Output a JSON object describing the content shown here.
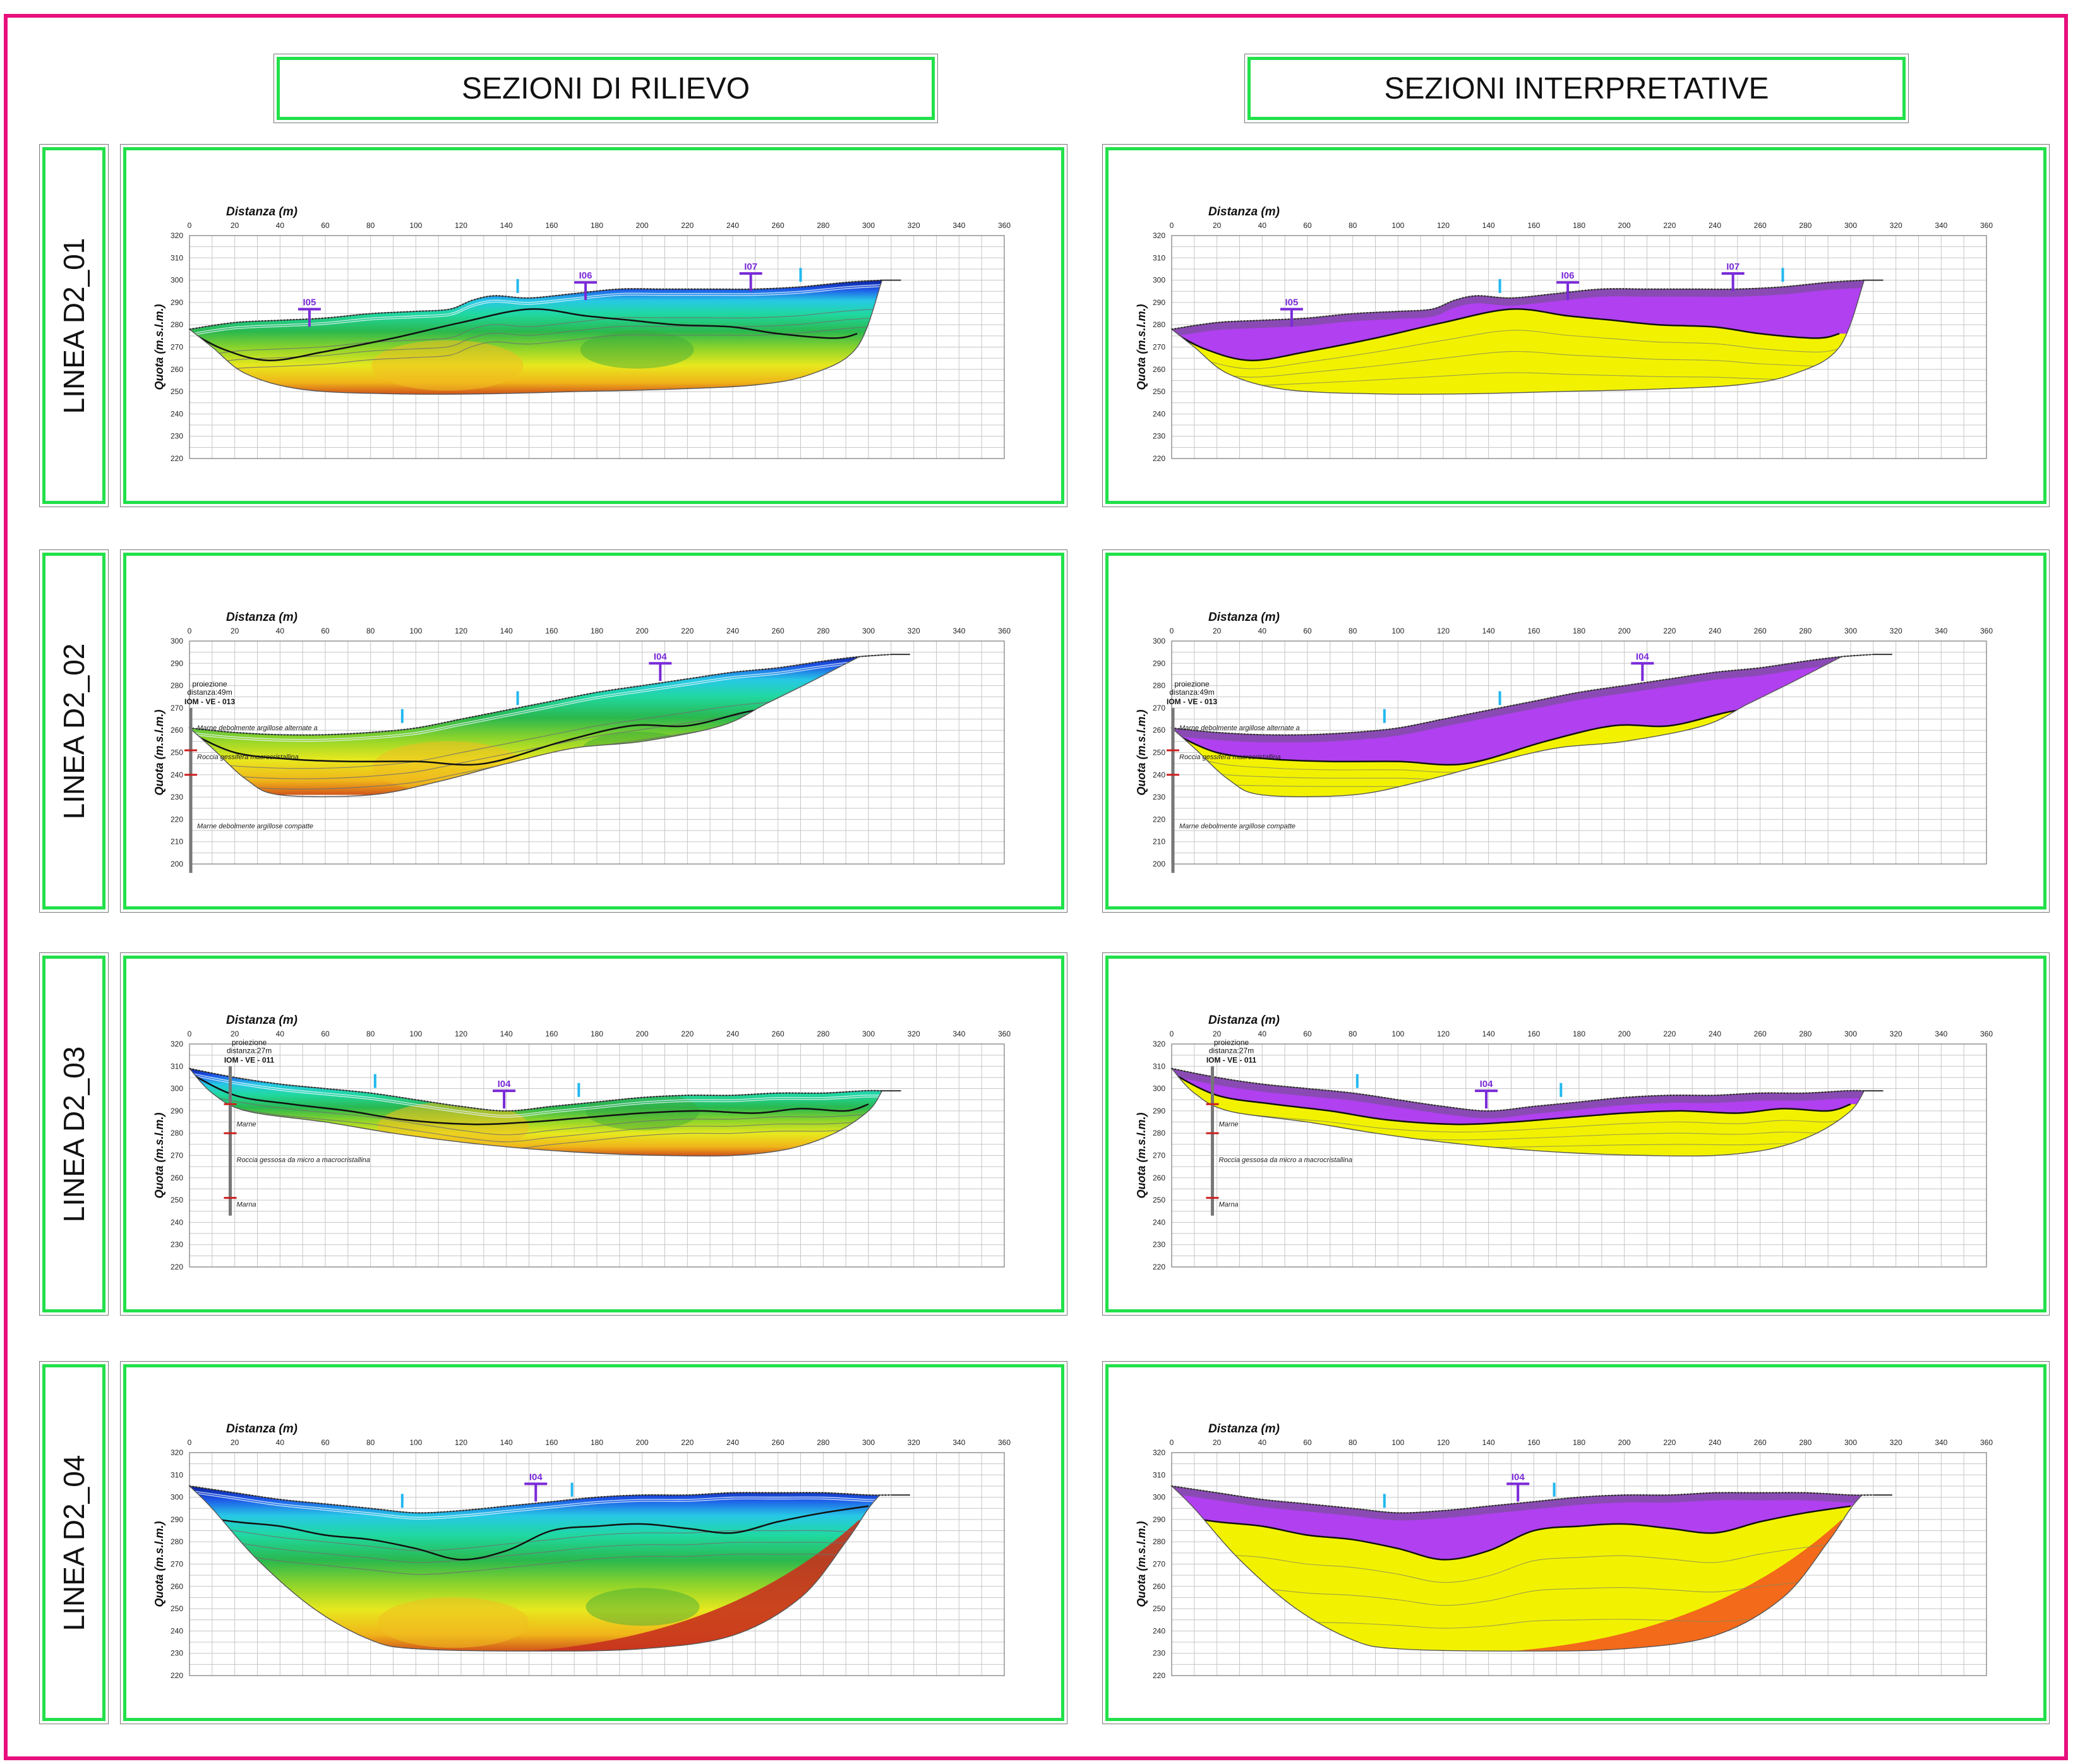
{
  "headers": {
    "left": "SEZIONI DI RILIEVO",
    "right": "SEZIONI INTERPRETATIVE"
  },
  "axis": {
    "x_title": "Distanza (m)",
    "y_title": "Quota (m.s.l.m.)",
    "x_ticks": [
      "0",
      "20",
      "40",
      "60",
      "80",
      "100",
      "120",
      "140",
      "160",
      "180",
      "200",
      "220",
      "240",
      "260",
      "280",
      "300",
      "320",
      "340",
      "360"
    ]
  },
  "colors": {
    "frame": "#e8107d",
    "border": "#22e04a",
    "interp_upper": "#b040f0",
    "interp_lower": "#f2f200",
    "interp_deep": "#f26a1a",
    "marker": "#7a2ad8",
    "tick_marker": "#22b8f0",
    "borehole_mark": "#cc1f1f"
  },
  "rows": [
    {
      "label": "LINEA D2_01",
      "y_ticks": [
        "320",
        "310",
        "300",
        "290",
        "280",
        "270",
        "260",
        "250",
        "240",
        "230",
        "220"
      ],
      "ymax": 320,
      "ymin": 220,
      "markers": [
        {
          "text": "I05",
          "x": 53,
          "y": 287
        },
        {
          "text": "I06",
          "x": 175,
          "y": 299
        },
        {
          "text": "I07",
          "x": 248,
          "y": 303
        }
      ],
      "blue_ticks": [
        145,
        270
      ],
      "top": [
        [
          0,
          278
        ],
        [
          20,
          281
        ],
        [
          40,
          282
        ],
        [
          60,
          283
        ],
        [
          80,
          285
        ],
        [
          100,
          286
        ],
        [
          115,
          287
        ],
        [
          125,
          291
        ],
        [
          135,
          293
        ],
        [
          150,
          292
        ],
        [
          170,
          294
        ],
        [
          190,
          296
        ],
        [
          210,
          296
        ],
        [
          230,
          296
        ],
        [
          250,
          296
        ],
        [
          270,
          297
        ],
        [
          290,
          299
        ],
        [
          306,
          300
        ]
      ],
      "bottom": [
        [
          0,
          278
        ],
        [
          10,
          270
        ],
        [
          25,
          258
        ],
        [
          50,
          251
        ],
        [
          90,
          249
        ],
        [
          130,
          249
        ],
        [
          170,
          250
        ],
        [
          210,
          251
        ],
        [
          250,
          253
        ],
        [
          275,
          258
        ],
        [
          295,
          270
        ],
        [
          306,
          300
        ]
      ],
      "boundary": [
        [
          0,
          277
        ],
        [
          15,
          269
        ],
        [
          35,
          264
        ],
        [
          60,
          268
        ],
        [
          90,
          274
        ],
        [
          120,
          281
        ],
        [
          150,
          287
        ],
        [
          175,
          284
        ],
        [
          195,
          282
        ],
        [
          215,
          280
        ],
        [
          240,
          279
        ],
        [
          260,
          276
        ],
        [
          285,
          274
        ],
        [
          295,
          276
        ]
      ],
      "borehole": null
    },
    {
      "label": "LINEA D2_02",
      "y_ticks": [
        "300",
        "290",
        "280",
        "270",
        "260",
        "250",
        "240",
        "230",
        "220",
        "210",
        "200"
      ],
      "ymax": 300,
      "ymin": 200,
      "markers": [
        {
          "text": "I04",
          "x": 208,
          "y": 290
        }
      ],
      "blue_ticks": [
        94,
        145
      ],
      "top": [
        [
          0,
          261
        ],
        [
          20,
          259
        ],
        [
          40,
          258
        ],
        [
          60,
          258
        ],
        [
          80,
          259
        ],
        [
          100,
          261
        ],
        [
          120,
          265
        ],
        [
          140,
          269
        ],
        [
          160,
          273
        ],
        [
          180,
          277
        ],
        [
          200,
          280
        ],
        [
          220,
          283
        ],
        [
          240,
          286
        ],
        [
          260,
          288
        ],
        [
          280,
          291
        ],
        [
          296,
          293
        ],
        [
          310,
          294
        ]
      ],
      "bottom": [
        [
          0,
          261
        ],
        [
          10,
          252
        ],
        [
          25,
          238
        ],
        [
          40,
          231
        ],
        [
          80,
          231
        ],
        [
          110,
          237
        ],
        [
          140,
          245
        ],
        [
          170,
          252
        ],
        [
          200,
          255
        ],
        [
          235,
          262
        ],
        [
          255,
          272
        ],
        [
          275,
          282
        ],
        [
          296,
          293
        ]
      ],
      "boundary": [
        [
          0,
          259
        ],
        [
          20,
          250
        ],
        [
          45,
          247
        ],
        [
          70,
          246
        ],
        [
          100,
          246
        ],
        [
          130,
          245
        ],
        [
          165,
          255
        ],
        [
          195,
          262
        ],
        [
          220,
          262
        ],
        [
          245,
          268
        ],
        [
          265,
          272
        ],
        [
          285,
          282
        ],
        [
          296,
          288
        ]
      ],
      "borehole": {
        "x": 0,
        "top": 270,
        "bottom": 196,
        "marks": [
          251,
          240
        ],
        "label_lines": [
          "proiezione",
          "distanza:49m"
        ],
        "label_id": "IOM - VE - 013",
        "notes": [
          {
            "text": "Marne debolmente argillose alternate a",
            "y": 260
          },
          {
            "text": "Roccia gessifera macrocristallina",
            "y": 247
          },
          {
            "text": "Marne debolmente argillose compatte",
            "y": 216
          }
        ]
      }
    },
    {
      "label": "LINEA D2_03",
      "y_ticks": [
        "320",
        "310",
        "300",
        "290",
        "280",
        "270",
        "260",
        "250",
        "240",
        "230",
        "220"
      ],
      "ymax": 320,
      "ymin": 220,
      "markers": [
        {
          "text": "I04",
          "x": 139,
          "y": 299
        }
      ],
      "blue_ticks": [
        82,
        172
      ],
      "top": [
        [
          0,
          309
        ],
        [
          20,
          305
        ],
        [
          40,
          302
        ],
        [
          60,
          300
        ],
        [
          80,
          298
        ],
        [
          100,
          295
        ],
        [
          120,
          292
        ],
        [
          140,
          290
        ],
        [
          160,
          292
        ],
        [
          180,
          294
        ],
        [
          200,
          296
        ],
        [
          220,
          297
        ],
        [
          240,
          297
        ],
        [
          260,
          298
        ],
        [
          280,
          298
        ],
        [
          298,
          299
        ],
        [
          306,
          299
        ]
      ],
      "bottom": [
        [
          0,
          309
        ],
        [
          10,
          298
        ],
        [
          25,
          290
        ],
        [
          60,
          285
        ],
        [
          90,
          280
        ],
        [
          120,
          276
        ],
        [
          150,
          273
        ],
        [
          180,
          271
        ],
        [
          210,
          270
        ],
        [
          240,
          270
        ],
        [
          265,
          273
        ],
        [
          285,
          280
        ],
        [
          300,
          290
        ],
        [
          306,
          299
        ]
      ],
      "boundary": [
        [
          0,
          307
        ],
        [
          20,
          297
        ],
        [
          45,
          293
        ],
        [
          70,
          290
        ],
        [
          95,
          286
        ],
        [
          125,
          284
        ],
        [
          150,
          285
        ],
        [
          175,
          287
        ],
        [
          200,
          289
        ],
        [
          225,
          290
        ],
        [
          250,
          289
        ],
        [
          270,
          291
        ],
        [
          290,
          290
        ],
        [
          300,
          293
        ]
      ],
      "borehole": {
        "x": 18,
        "top": 310,
        "bottom": 243,
        "marks": [
          293,
          280,
          251
        ],
        "label_lines": [
          "proiezione",
          "distanza:27m"
        ],
        "label_id": "IOM - VE - 011",
        "notes": [
          {
            "text": "Marne",
            "y": 283
          },
          {
            "text": "Roccia gessosa da micro a macrocristallina",
            "y": 267
          },
          {
            "text": "Marna",
            "y": 247
          }
        ]
      }
    },
    {
      "label": "LINEA D2_04",
      "y_ticks": [
        "320",
        "310",
        "300",
        "290",
        "280",
        "270",
        "260",
        "250",
        "240",
        "230",
        "220"
      ],
      "ymax": 320,
      "ymin": 220,
      "markers": [
        {
          "text": "I04",
          "x": 153,
          "y": 306
        }
      ],
      "blue_ticks": [
        94,
        169
      ],
      "top": [
        [
          0,
          305
        ],
        [
          20,
          302
        ],
        [
          40,
          299
        ],
        [
          60,
          297
        ],
        [
          80,
          295
        ],
        [
          100,
          293
        ],
        [
          120,
          294
        ],
        [
          140,
          296
        ],
        [
          160,
          298
        ],
        [
          180,
          300
        ],
        [
          200,
          301
        ],
        [
          220,
          301
        ],
        [
          240,
          302
        ],
        [
          260,
          302
        ],
        [
          280,
          302
        ],
        [
          300,
          301
        ],
        [
          310,
          301
        ]
      ],
      "bottom": [
        [
          0,
          305
        ],
        [
          10,
          295
        ],
        [
          30,
          272
        ],
        [
          55,
          250
        ],
        [
          80,
          236
        ],
        [
          100,
          232
        ],
        [
          150,
          231
        ],
        [
          200,
          232
        ],
        [
          240,
          238
        ],
        [
          270,
          255
        ],
        [
          290,
          280
        ],
        [
          300,
          295
        ],
        [
          305,
          301
        ]
      ],
      "boundary": [
        [
          0,
          292
        ],
        [
          20,
          289
        ],
        [
          40,
          287
        ],
        [
          60,
          283
        ],
        [
          80,
          281
        ],
        [
          100,
          277
        ],
        [
          120,
          272
        ],
        [
          140,
          276
        ],
        [
          160,
          285
        ],
        [
          180,
          287
        ],
        [
          200,
          288
        ],
        [
          220,
          286
        ],
        [
          240,
          284
        ],
        [
          260,
          289
        ],
        [
          280,
          293
        ],
        [
          300,
          296
        ]
      ],
      "borehole": null
    }
  ]
}
